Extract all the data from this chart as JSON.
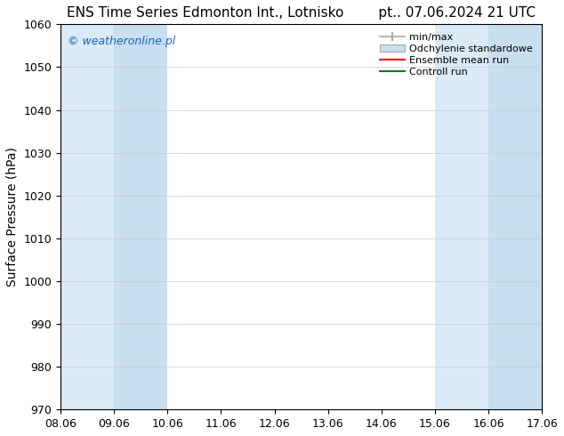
{
  "title_left": "ENS Time Series Edmonton Int., Lotnisko",
  "title_right": "pt.. 07.06.2024 21 UTC",
  "ylabel": "Surface Pressure (hPa)",
  "ylim": [
    970,
    1060
  ],
  "yticks": [
    970,
    980,
    990,
    1000,
    1010,
    1020,
    1030,
    1040,
    1050,
    1060
  ],
  "xlim": [
    0,
    9
  ],
  "xtick_labels": [
    "08.06",
    "09.06",
    "10.06",
    "11.06",
    "12.06",
    "13.06",
    "14.06",
    "15.06",
    "16.06",
    "17.06"
  ],
  "xtick_positions": [
    0,
    1,
    2,
    3,
    4,
    5,
    6,
    7,
    8,
    9
  ],
  "watermark": "© weatheronline.pl",
  "watermark_color": "#1565C0",
  "background_color": "#ffffff",
  "band_outer_color": "#daeaf7",
  "band_inner_color": "#c8dff0",
  "shaded_outer": [
    {
      "x_start": 0,
      "x_end": 2
    },
    {
      "x_start": 7,
      "x_end": 9
    }
  ],
  "shaded_inner": [
    {
      "x_start": 1,
      "x_end": 2
    },
    {
      "x_start": 8,
      "x_end": 9
    }
  ],
  "legend_minmax_color": "#aaaaaa",
  "legend_std_facecolor": "#c8dff0",
  "legend_std_edgecolor": "#aaaaaa",
  "legend_ens_color": "#ff0000",
  "legend_ctrl_color": "#008000",
  "grid_color": "#cccccc",
  "title_fontsize": 11,
  "tick_fontsize": 9,
  "ylabel_fontsize": 10,
  "watermark_fontsize": 9,
  "legend_fontsize": 8
}
